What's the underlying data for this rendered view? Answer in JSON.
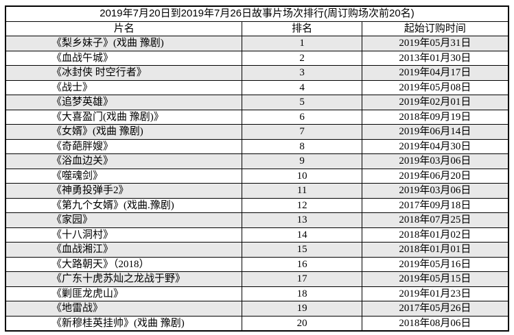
{
  "title": "2019年7月20日到2019年7月26日故事片场次排行(周订购场次前20名)",
  "table": {
    "headers": {
      "name": "片名",
      "rank": "排名",
      "date": "起始订购时间"
    },
    "shaded_row_color": "#e8e8e8",
    "border_color": "#000000",
    "rows": [
      {
        "name": "《梨乡妹子》(戏曲 豫剧)",
        "rank": "1",
        "date": "2019年05月31日"
      },
      {
        "name": "《血战午城》",
        "rank": "2",
        "date": "2013年01月30日"
      },
      {
        "name": "《冰封侠 时空行者》",
        "rank": "3",
        "date": "2019年04月17日"
      },
      {
        "name": "《战士》",
        "rank": "4",
        "date": "2019年05月08日"
      },
      {
        "name": "《追梦英雄》",
        "rank": "5",
        "date": "2019年02月01日"
      },
      {
        "name": "《大喜盈门(戏曲 豫剧)》",
        "rank": "6",
        "date": "2018年09月19日"
      },
      {
        "name": "《女婿》(戏曲 豫剧)",
        "rank": "7",
        "date": "2019年06月14日"
      },
      {
        "name": "《奇葩胖嫂》",
        "rank": "8",
        "date": "2019年04月30日"
      },
      {
        "name": "《浴血边关》",
        "rank": "9",
        "date": "2019年03月06日"
      },
      {
        "name": "《噬魂剑》",
        "rank": "10",
        "date": "2019年06月20日"
      },
      {
        "name": "《神勇投弹手2》",
        "rank": "11",
        "date": "2019年03月06日"
      },
      {
        "name": "《第九个女婿》(戏曲.豫剧)",
        "rank": "12",
        "date": "2017年09月18日"
      },
      {
        "name": "《家园》",
        "rank": "13",
        "date": "2018年07月25日"
      },
      {
        "name": "《十八洞村》",
        "rank": "14",
        "date": "2018年01月02日"
      },
      {
        "name": "《血战湘江》",
        "rank": "15",
        "date": "2018年01月01日"
      },
      {
        "name": "《大路朝天》（2018）",
        "rank": "16",
        "date": "2019年05月16日"
      },
      {
        "name": "《广东十虎苏灿之龙战于野》",
        "rank": "17",
        "date": "2019年05月15日"
      },
      {
        "name": "《剿匪龙虎山》",
        "rank": "18",
        "date": "2019年01月23日"
      },
      {
        "name": "《地雷战》",
        "rank": "19",
        "date": "2017年05月26日"
      },
      {
        "name": "《新穆桂英挂帅》(戏曲 豫剧)",
        "rank": "20",
        "date": "2018年08月06日"
      }
    ]
  }
}
